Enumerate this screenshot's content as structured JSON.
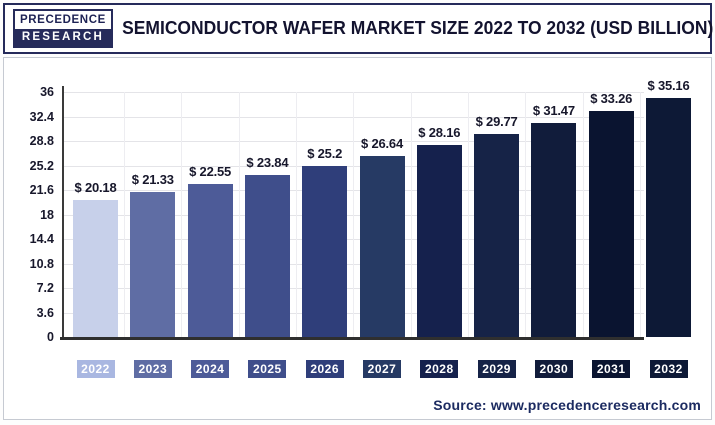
{
  "header": {
    "logo_line1": "PRECEDENCE",
    "logo_line2": "RESEARCH",
    "title": "SEMICONDUCTOR WAFER MARKET SIZE 2022 TO 2032 (USD BILLION)"
  },
  "footer": {
    "source": "Source: www.precedenceresearch.com"
  },
  "colors": {
    "brand_navy": "#262b5b",
    "title_text": "#13132f",
    "label_text": "#17172b",
    "grid_h": "#e4e4e8",
    "grid_v": "#ededf1",
    "axis": "#3a3a3a",
    "baseline": "#2f2f2f",
    "source_text": "#1c2b61",
    "chip_text": "#ffffff"
  },
  "chart_data": {
    "type": "bar",
    "title": "SEMICONDUCTOR WAFER MARKET SIZE 2022 TO 2032 (USD BILLION)",
    "xlabel": "",
    "ylabel": "",
    "unit": "USD Billion",
    "categories": [
      "2022",
      "2023",
      "2024",
      "2025",
      "2026",
      "2027",
      "2028",
      "2029",
      "2030",
      "2031",
      "2032"
    ],
    "values": [
      20.18,
      21.33,
      22.55,
      23.84,
      25.2,
      26.64,
      28.16,
      29.77,
      31.47,
      33.26,
      35.16
    ],
    "value_labels": [
      "$ 20.18",
      "$ 21.33",
      "$ 22.55",
      "$ 23.84",
      "$ 25.2",
      "$ 26.64",
      "$ 28.16",
      "$ 29.77",
      "$ 31.47",
      "$ 33.26",
      "$ 35.16"
    ],
    "ylim": [
      0,
      36
    ],
    "yticks": [
      0,
      3.6,
      7.2,
      10.8,
      14.4,
      18,
      21.6,
      25.2,
      28.8,
      32.4,
      36
    ],
    "grid": "horizontal",
    "legend": "none",
    "bar_colors": [
      "#c7d0ea",
      "#5f6da4",
      "#4d5b98",
      "#3f4e8b",
      "#2f3e7a",
      "#263a64",
      "#15214d",
      "#162347",
      "#111c3b",
      "#0a1430",
      "#0d1936"
    ],
    "chip_colors": [
      "#a9b7e1",
      "#5f6da4",
      "#4d5b98",
      "#3f4e8b",
      "#2f3e7a",
      "#263a64",
      "#15214d",
      "#162347",
      "#111c3b",
      "#0a1430",
      "#0d1936"
    ]
  }
}
